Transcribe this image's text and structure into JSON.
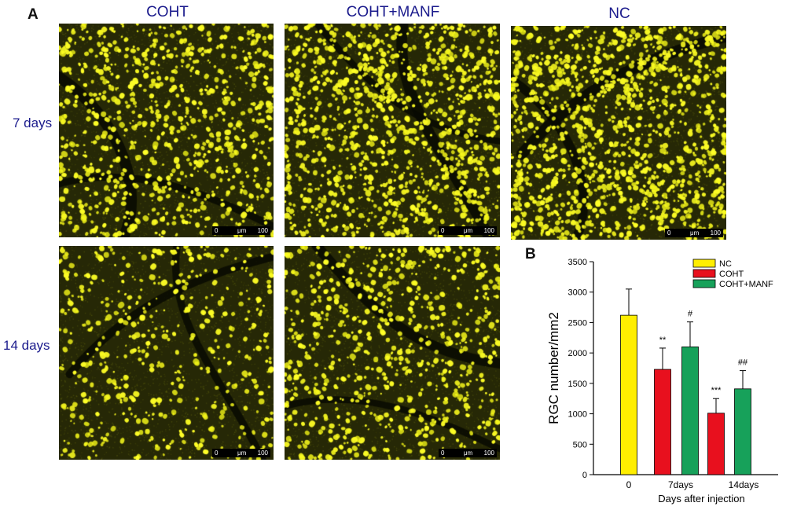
{
  "panel_a": {
    "letter": "A",
    "column_labels": [
      "COHT",
      "COHT+MANF",
      "NC"
    ],
    "row_labels": [
      "7 days",
      "14 days"
    ],
    "scale_bar": {
      "start": "0",
      "unit": "μm",
      "end": "100"
    }
  },
  "panel_b": {
    "letter": "B"
  },
  "chart_data": {
    "type": "bar",
    "categories": [
      "0",
      "7days",
      "14days"
    ],
    "series": [
      {
        "name": "NC",
        "color": "#ffee00",
        "values": [
          2620,
          null,
          null
        ],
        "errors": [
          430,
          null,
          null
        ]
      },
      {
        "name": "COHT",
        "color": "#e8101e",
        "values": [
          null,
          1730,
          1010
        ],
        "errors": [
          null,
          350,
          240
        ]
      },
      {
        "name": "COHT+MANF",
        "color": "#17a15a",
        "values": [
          null,
          2100,
          1410
        ],
        "errors": [
          null,
          410,
          300
        ]
      }
    ],
    "annotations": [
      {
        "category": "7days",
        "series": "COHT",
        "text": "**"
      },
      {
        "category": "7days",
        "series": "COHT+MANF",
        "text": "#"
      },
      {
        "category": "14days",
        "series": "COHT",
        "text": "***"
      },
      {
        "category": "14days",
        "series": "COHT+MANF",
        "text": "##"
      }
    ],
    "xlabel": "Days after injection",
    "ylabel": "RGC  number/mm2",
    "ylim": [
      0,
      3500
    ],
    "yticks": [
      0,
      500,
      1000,
      1500,
      2000,
      2500,
      3000,
      3500
    ],
    "legend_position": "top-right",
    "grid": false
  }
}
